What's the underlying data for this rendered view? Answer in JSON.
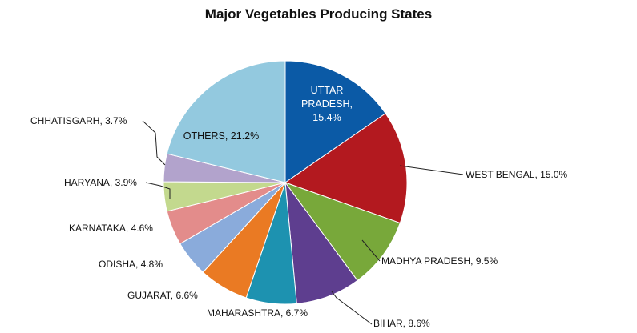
{
  "chart_data": {
    "type": "pie",
    "title": "Major Vegetables  Producing States",
    "start_angle_deg": 0,
    "direction": "clockwise",
    "slices": [
      {
        "label": "UTTAR PRADESH",
        "value": 15.4,
        "display": "UTTAR\nPRADESH,\n15.4%",
        "color": "#0b5aa6",
        "label_inside": true,
        "text_color": "#ffffff"
      },
      {
        "label": "WEST BENGAL",
        "value": 15.0,
        "display": "WEST BENGAL, 15.0%",
        "color": "#b3191f"
      },
      {
        "label": "MADHYA PRADESH",
        "value": 9.5,
        "display": "MADHYA PRADESH, 9.5%",
        "color": "#78a83a"
      },
      {
        "label": "BIHAR",
        "value": 8.6,
        "display": "BIHAR, 8.6%",
        "color": "#5e3e8f"
      },
      {
        "label": "MAHARASHTRA",
        "value": 6.7,
        "display": "MAHARASHTRA, 6.7%",
        "color": "#1d92b0"
      },
      {
        "label": "GUJARAT",
        "value": 6.6,
        "display": "GUJARAT, 6.6%",
        "color": "#ea7a23"
      },
      {
        "label": "ODISHA",
        "value": 4.8,
        "display": "ODISHA, 4.8%",
        "color": "#8aabdb"
      },
      {
        "label": "KARNATAKA",
        "value": 4.6,
        "display": "KARNATAKA, 4.6%",
        "color": "#e38c8b"
      },
      {
        "label": "HARYANA",
        "value": 3.9,
        "display": "HARYANA, 3.9%",
        "color": "#c3d98e"
      },
      {
        "label": "CHHATISGARH",
        "value": 3.7,
        "display": "CHHATISGARH, 3.7%",
        "color": "#b2a3cc"
      },
      {
        "label": "OTHERS",
        "value": 21.2,
        "display": "OTHERS, 21.2%",
        "color": "#93c9df",
        "label_inside": true,
        "text_color": "#111111"
      }
    ]
  }
}
